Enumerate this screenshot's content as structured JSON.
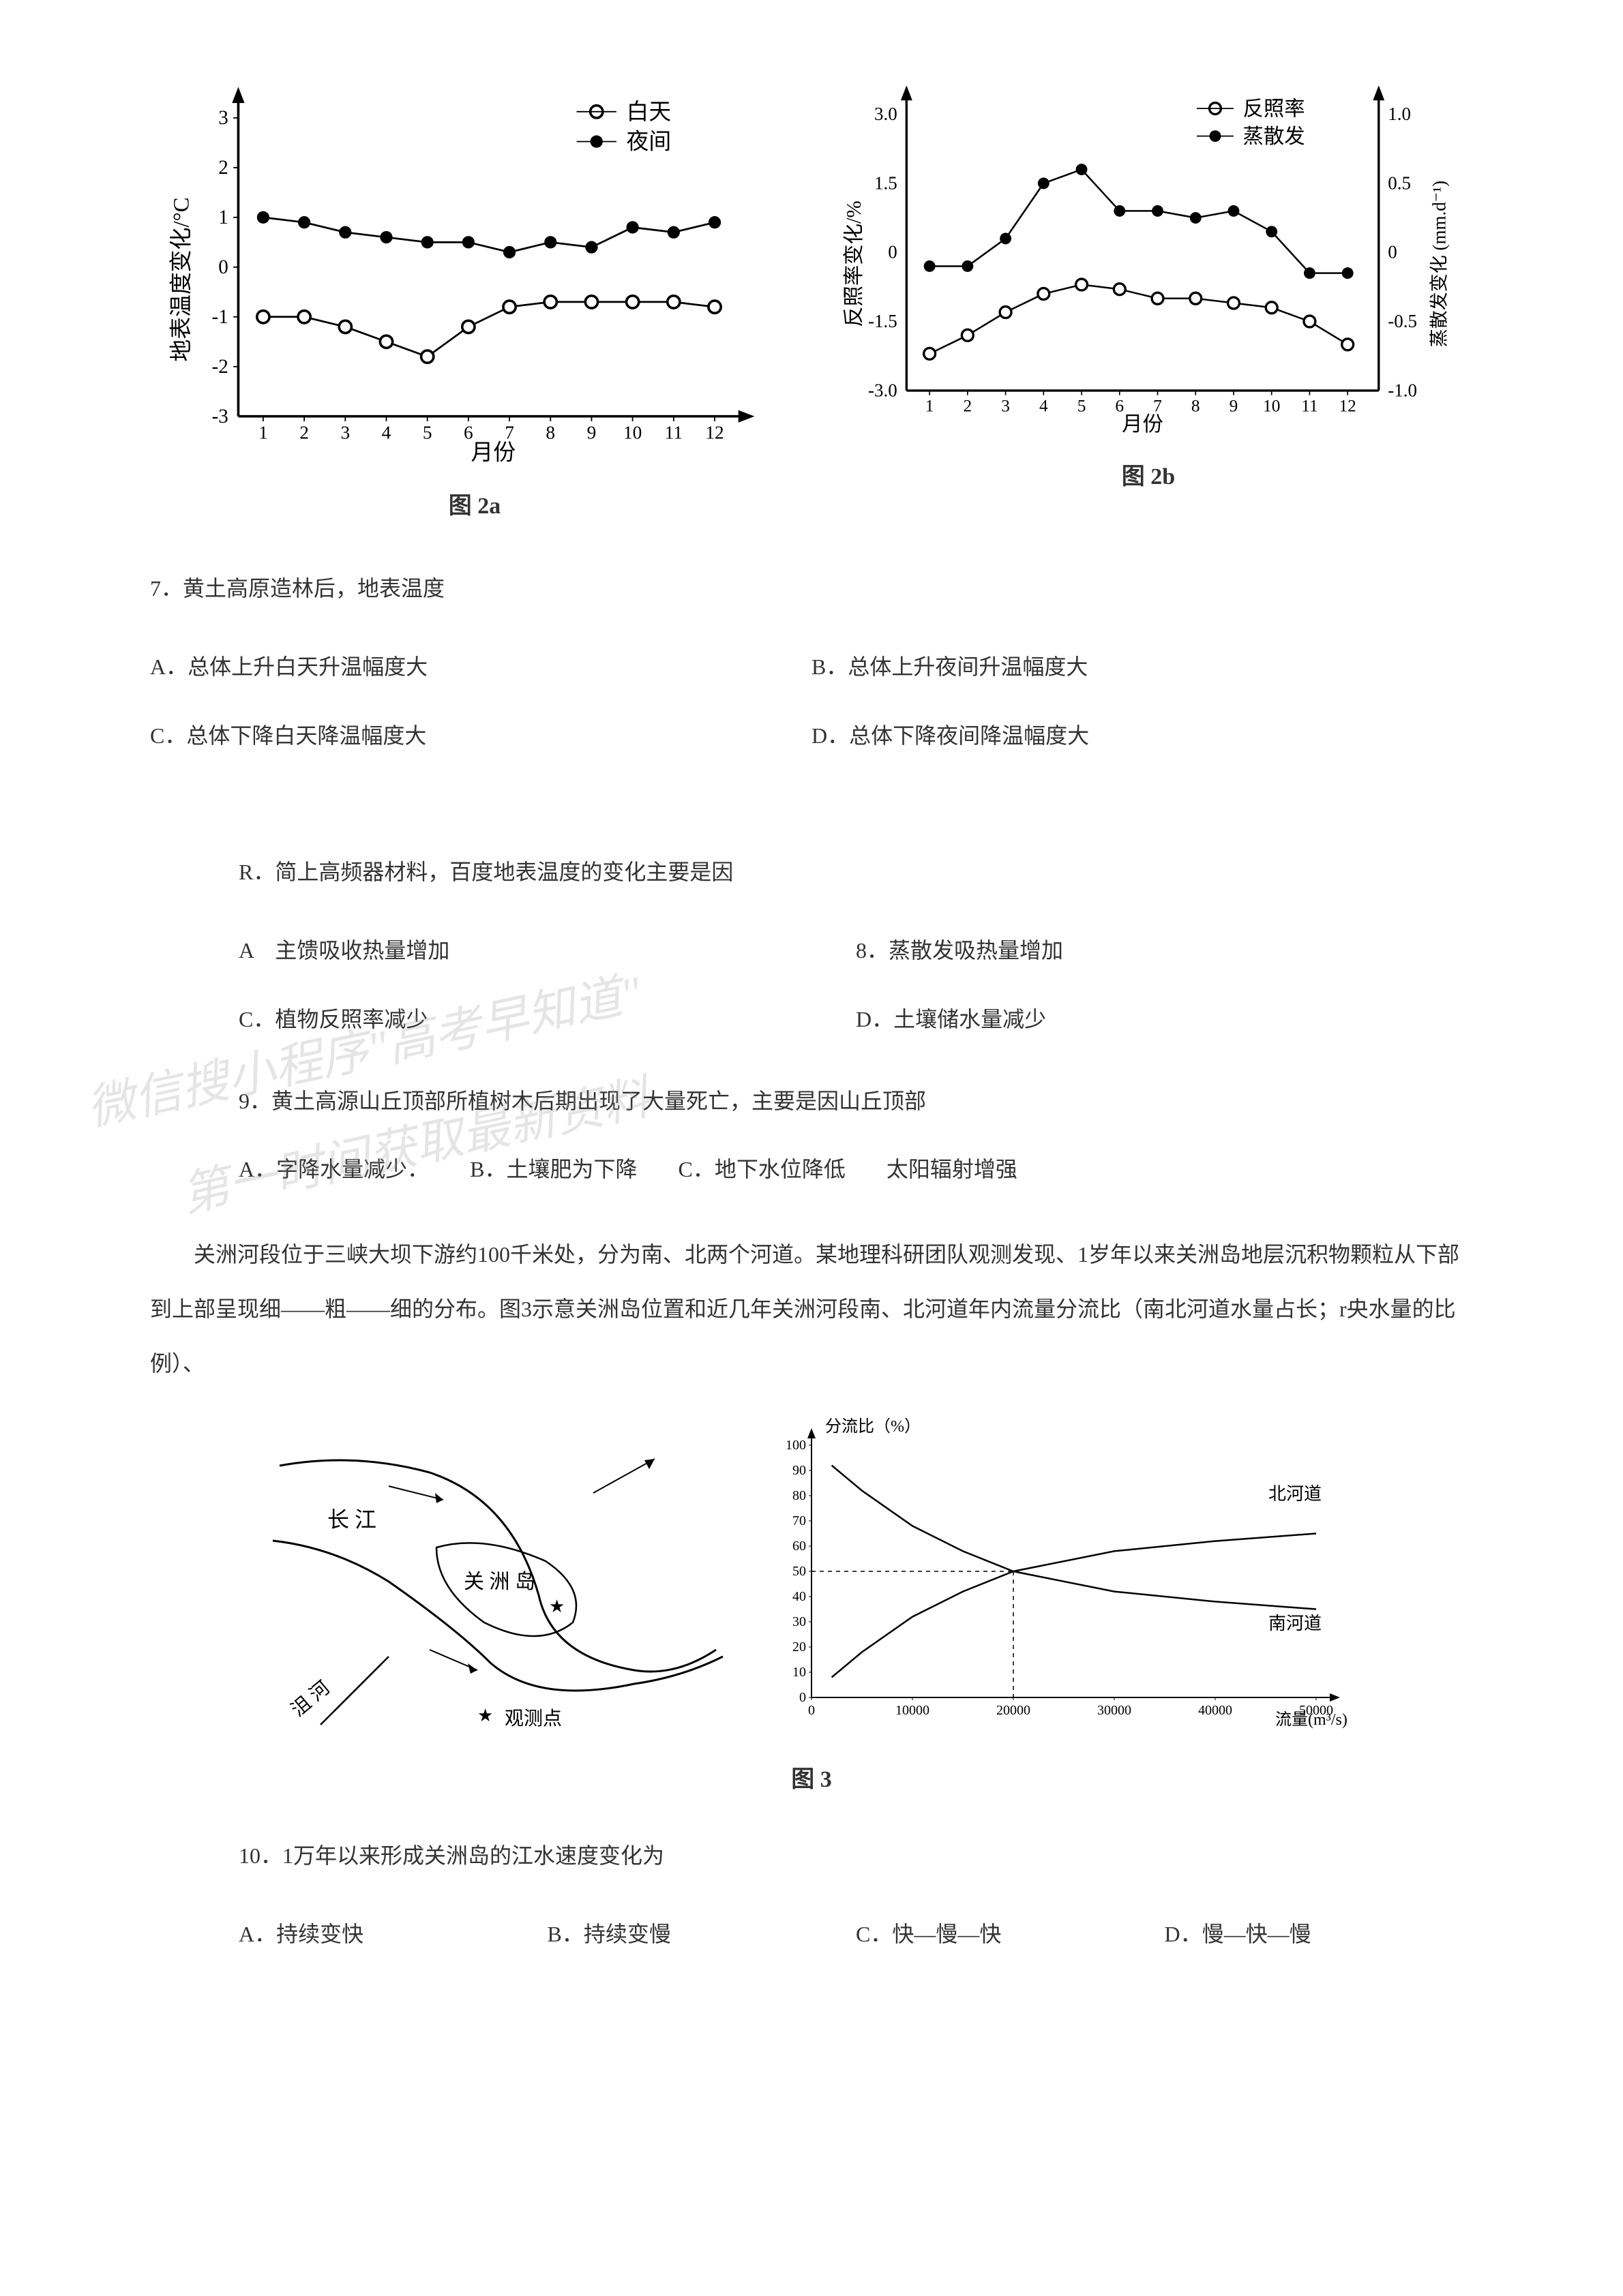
{
  "chart2a": {
    "type": "line",
    "label": "图 2a",
    "x_axis_label": "月份",
    "y_axis_label": "地表温度变化/°C",
    "x_ticks": [
      1,
      2,
      3,
      4,
      5,
      6,
      7,
      8,
      9,
      10,
      11,
      12
    ],
    "y_ticks": [
      -3,
      -2,
      -1,
      0,
      1,
      2,
      3
    ],
    "ylim": [
      -3,
      3
    ],
    "series": [
      {
        "name": "白天",
        "marker": "open-circle",
        "color": "#000000",
        "values": [
          -1.0,
          -1.0,
          -1.2,
          -1.5,
          -1.8,
          -1.2,
          -0.8,
          -0.7,
          -0.7,
          -0.7,
          -0.7,
          -0.8
        ]
      },
      {
        "name": "夜间",
        "marker": "filled-circle",
        "color": "#000000",
        "values": [
          1.0,
          0.9,
          0.7,
          0.6,
          0.5,
          0.5,
          0.3,
          0.5,
          0.4,
          0.8,
          0.7,
          0.9
        ]
      }
    ],
    "legend_items": [
      "白天",
      "夜间"
    ],
    "background_color": "#ffffff"
  },
  "chart2b": {
    "type": "line",
    "label": "图 2b",
    "x_axis_label": "月份",
    "y_left_label": "反照率变化/%",
    "y_right_label": "蒸散发变化 (mm.d⁻¹)",
    "x_ticks": [
      1,
      2,
      3,
      4,
      5,
      6,
      7,
      8,
      9,
      10,
      11,
      12
    ],
    "y_left_ticks": [
      -3.0,
      -1.5,
      0,
      1.5,
      3.0
    ],
    "y_right_ticks": [
      -1.0,
      -0.5,
      0,
      0.5,
      1.0
    ],
    "series": [
      {
        "name": "反照率",
        "marker": "open-circle",
        "color": "#000000",
        "values": [
          -2.2,
          -1.8,
          -1.3,
          -0.9,
          -0.7,
          -0.8,
          -1.0,
          -1.0,
          -1.1,
          -1.2,
          -1.5,
          -2.0
        ]
      },
      {
        "name": "蒸散发",
        "marker": "filled-circle",
        "color": "#000000",
        "values": [
          -0.1,
          -0.1,
          0.1,
          0.5,
          0.6,
          0.3,
          0.3,
          0.25,
          0.3,
          0.15,
          -0.15,
          -0.15
        ]
      }
    ],
    "legend_items": [
      "反照率",
      "蒸散发"
    ],
    "background_color": "#ffffff"
  },
  "q7": {
    "number": "7．",
    "text": "黄土高原造林后，地表温度",
    "options": {
      "A": "A．总体上升白天升温幅度大",
      "B": "B．总体上升夜间升温幅度大",
      "C": "C．总体下降白天降温幅度大",
      "D": "D．总体下降夜间降温幅度大"
    }
  },
  "q8": {
    "prefix": "R．简上高频器材料，百度地表温度的变化主要是因",
    "options": {
      "A": "A　主馈吸收热量增加",
      "B": "8．蒸散发吸热量增加",
      "C": "C．植物反照率减少",
      "D": "D．土壤储水量减少"
    }
  },
  "q9": {
    "number": "9．",
    "text": "黄土高源山丘顶部所植树木后期出现了大量死亡，主要是因山丘顶部",
    "options": {
      "A": "A．字降水量减少．",
      "B": "B．土壤肥为下降",
      "C": "C．地下水位降低",
      "D": "太阳辐射增强"
    }
  },
  "passage": {
    "text": "关洲河段位于三峡大坝下游约100千米处，分为南、北两个河道。某地理科研团队观测发现、1岁年以来关洲岛地层沉积物颗粒从下部到上部呈现细——粗——细的分布。图3示意关洲岛位置和近几年关洲河段南、北河道年内流量分流比（南北河道水量占长；r央水量的比例）、"
  },
  "figure3": {
    "label": "图 3",
    "map": {
      "river_label": "长 江",
      "island_label": "关 洲 岛",
      "tributary_label": "沮 河",
      "legend_star": "★",
      "legend_text": "观测点"
    },
    "chart": {
      "type": "line",
      "y_label": "分流比（%）",
      "x_label": "流量(m³/s)",
      "x_ticks": [
        0,
        10000,
        20000,
        30000,
        40000,
        50000
      ],
      "y_ticks": [
        0,
        10,
        20,
        30,
        40,
        50,
        60,
        70,
        80,
        90,
        100
      ],
      "ylim": [
        0,
        100
      ],
      "series_labels": {
        "north": "北河道",
        "south": "南河道"
      },
      "north_values": [
        [
          2000,
          92
        ],
        [
          5000,
          82
        ],
        [
          10000,
          68
        ],
        [
          15000,
          58
        ],
        [
          20000,
          50
        ],
        [
          30000,
          42
        ],
        [
          40000,
          38
        ],
        [
          50000,
          35
        ]
      ],
      "south_values": [
        [
          2000,
          8
        ],
        [
          5000,
          18
        ],
        [
          10000,
          32
        ],
        [
          15000,
          42
        ],
        [
          20000,
          50
        ],
        [
          30000,
          58
        ],
        [
          40000,
          62
        ],
        [
          50000,
          65
        ]
      ],
      "intersection_x": 20000,
      "intersection_y": 50
    }
  },
  "q10": {
    "number": "10．",
    "text": "1万年以来形成关洲岛的江水速度变化为",
    "options": {
      "A": "A．持续变快",
      "B": "B．持续变慢",
      "C": "C．快—慢—快",
      "D": "D．慢—快—慢"
    }
  },
  "watermarks": {
    "w1": "微信搜小程序\"高考早知道\"",
    "w2": "第一时间获取最新资料"
  }
}
